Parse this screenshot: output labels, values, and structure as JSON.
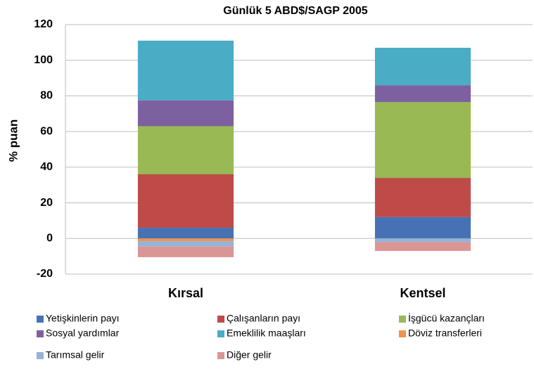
{
  "chart_data": {
    "type": "stacked_bar",
    "title": "Günlük 5 ABD$/SAGP 2005",
    "y_label": "% puan",
    "categories": [
      "Kırsal",
      "Kentsel"
    ],
    "series": [
      {
        "name": "Yetişkinlerin payı",
        "color": "#4672b5",
        "values": [
          6,
          12
        ]
      },
      {
        "name": "Çalışanların payı",
        "color": "#be4b48",
        "values": [
          30,
          22
        ]
      },
      {
        "name": "İşgücü kazançları",
        "color": "#98b954",
        "values": [
          27,
          42.5
        ]
      },
      {
        "name": "Sosyal yardımlar",
        "color": "#7d60a0",
        "values": [
          14.5,
          9.5
        ]
      },
      {
        "name": "Emeklilik maaşları",
        "color": "#4aacc5",
        "values": [
          33.5,
          21
        ]
      },
      {
        "name": "Döviz transferleri",
        "color": "#f0924b",
        "values": [
          -1.5,
          0
        ]
      },
      {
        "name": "Tarımsal gelir",
        "color": "#95b3d7",
        "values": [
          -3,
          -2
        ]
      },
      {
        "name": "Diğer gelir",
        "color": "#d99694",
        "values": [
          -6,
          -5
        ]
      }
    ],
    "ylim": [
      -20,
      120
    ],
    "yticks": [
      -20,
      0,
      20,
      40,
      60,
      80,
      100,
      120
    ],
    "grid": true
  }
}
